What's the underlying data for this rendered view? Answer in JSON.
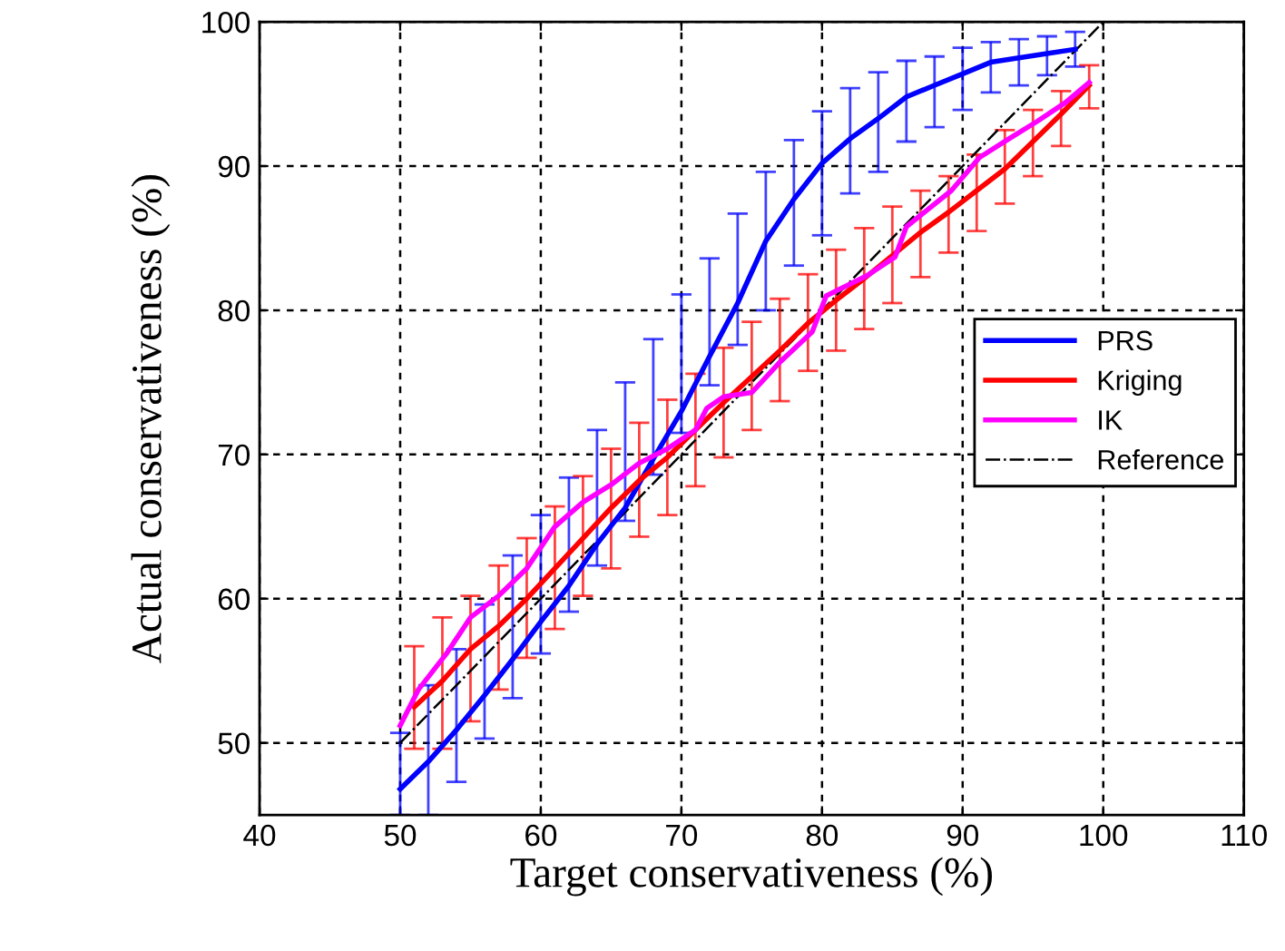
{
  "chart_data": {
    "type": "line",
    "xlabel": "Target conservativeness (%)",
    "ylabel": "Actual conservativeness (%)",
    "xlim": [
      40,
      110
    ],
    "xticks": [
      40,
      50,
      60,
      70,
      80,
      90,
      100,
      110
    ],
    "ylim": [
      45,
      100
    ],
    "yticks": [
      50,
      60,
      70,
      80,
      90,
      100
    ],
    "grid": true,
    "legend": "right",
    "series": [
      {
        "name": "PRS",
        "color": "#0000ff",
        "x": [
          50,
          52,
          54,
          56,
          58,
          60,
          62,
          64,
          66,
          68,
          70,
          72,
          74,
          76,
          78,
          80,
          82,
          84,
          86,
          88,
          90,
          92,
          94,
          96,
          98
        ],
        "values": [
          46.8,
          48.7,
          50.9,
          53.3,
          55.8,
          58.4,
          60.9,
          63.8,
          66.3,
          69.7,
          73.0,
          76.8,
          80.5,
          84.8,
          87.7,
          90.2,
          91.9,
          93.3,
          94.8,
          95.6,
          96.4,
          97.2,
          97.5,
          97.8,
          98.1
        ],
        "errors": [
          [
            45,
            50.7
          ],
          [
            45,
            54.0
          ],
          [
            47.3,
            56.5
          ],
          [
            50.3,
            59.6
          ],
          [
            53.1,
            63.0
          ],
          [
            56.2,
            65.8
          ],
          [
            59.1,
            68.4
          ],
          [
            62.3,
            71.7
          ],
          [
            65.4,
            75.0
          ],
          [
            68.6,
            78.0
          ],
          [
            71.5,
            81.1
          ],
          [
            74.8,
            83.6
          ],
          [
            77.6,
            86.7
          ],
          [
            80.0,
            89.6
          ],
          [
            83.1,
            91.8
          ],
          [
            85.2,
            93.8
          ],
          [
            88.1,
            95.4
          ],
          [
            89.6,
            96.5
          ],
          [
            91.7,
            97.3
          ],
          [
            92.7,
            97.6
          ],
          [
            93.9,
            98.2
          ],
          [
            95.1,
            98.6
          ],
          [
            95.6,
            98.8
          ],
          [
            96.3,
            99.0
          ],
          [
            96.9,
            99.3
          ]
        ]
      },
      {
        "name": "Kriging",
        "color": "#ff0000",
        "x": [
          51,
          53,
          55,
          57,
          59,
          61,
          63,
          65,
          67,
          69,
          71,
          73,
          75,
          77,
          79,
          81,
          83,
          85,
          87,
          89,
          91,
          93,
          95,
          97,
          99
        ],
        "values": [
          52.5,
          54.3,
          56.5,
          58.1,
          60.0,
          62.1,
          64.2,
          66.3,
          68.2,
          69.8,
          71.7,
          73.6,
          75.4,
          77.2,
          79.1,
          80.7,
          82.2,
          83.8,
          85.4,
          86.8,
          88.3,
          89.8,
          91.7,
          93.6,
          95.6
        ],
        "errors": [
          [
            49.6,
            56.7
          ],
          [
            49.6,
            58.7
          ],
          [
            51.5,
            60.2
          ],
          [
            53.7,
            62.3
          ],
          [
            55.9,
            64.2
          ],
          [
            57.9,
            66.4
          ],
          [
            60.2,
            68.5
          ],
          [
            62.1,
            70.4
          ],
          [
            64.3,
            72.2
          ],
          [
            65.8,
            73.8
          ],
          [
            67.8,
            75.6
          ],
          [
            69.8,
            77.4
          ],
          [
            71.7,
            79.2
          ],
          [
            73.7,
            80.8
          ],
          [
            75.8,
            82.5
          ],
          [
            77.2,
            84.2
          ],
          [
            78.7,
            85.7
          ],
          [
            80.5,
            87.2
          ],
          [
            82.3,
            88.3
          ],
          [
            84.0,
            89.3
          ],
          [
            85.5,
            90.8
          ],
          [
            87.4,
            92.5
          ],
          [
            89.3,
            93.9
          ],
          [
            91.4,
            95.2
          ],
          [
            94.0,
            97.0
          ]
        ]
      },
      {
        "name": "IK",
        "color": "#ff00ff",
        "x": [
          50,
          51.3,
          53.3,
          55,
          57,
          59,
          61,
          63,
          65,
          67,
          69,
          71,
          71.8,
          73,
          75,
          77,
          79.3,
          80.3,
          83.2,
          85.2,
          86,
          89.2,
          91.2,
          93.3,
          95.3,
          97.3,
          99
        ],
        "values": [
          51.2,
          53.7,
          56.2,
          58.7,
          60.2,
          62.1,
          65.0,
          66.7,
          67.9,
          69.4,
          70.4,
          71.7,
          73.2,
          74.0,
          74.3,
          76.4,
          78.5,
          81.0,
          82.4,
          83.7,
          85.8,
          88.3,
          90.6,
          91.9,
          93.1,
          94.4,
          95.8
        ]
      },
      {
        "name": "Reference",
        "color": "#000000",
        "line_style": "dashdot",
        "x": [
          50,
          100
        ],
        "values": [
          50,
          100
        ]
      }
    ]
  }
}
